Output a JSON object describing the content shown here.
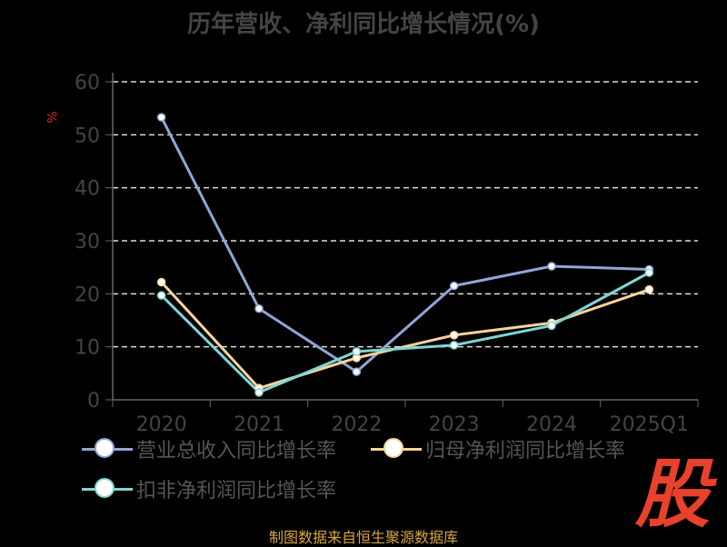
{
  "title": "历年营收、净利同比增长情况(%)",
  "source_note": "制图数据来自恒生聚源数据库",
  "brand_char": "股",
  "chart_data": {
    "type": "line",
    "title": "历年营收、净利同比增长情况(%)",
    "xlabel": "",
    "ylabel": "%",
    "categories": [
      "2020",
      "2021",
      "2022",
      "2023",
      "2024",
      "2025Q1"
    ],
    "ylim": [
      0,
      60
    ],
    "yticks": [
      0,
      10,
      20,
      30,
      40,
      50,
      60
    ],
    "grid": true,
    "legend_position": "bottom",
    "series": [
      {
        "name": "营业总收入同比增长率",
        "color": "#8fa6d6",
        "values": [
          53.3,
          17.2,
          5.3,
          21.5,
          25.2,
          24.6
        ]
      },
      {
        "name": "归母净利润同比增长率",
        "color": "#f9d49a",
        "values": [
          22.2,
          2.2,
          7.9,
          12.2,
          14.5,
          20.8
        ]
      },
      {
        "name": "扣非净利润同比增长率",
        "color": "#7fd6d6",
        "values": [
          19.7,
          1.4,
          9.1,
          10.3,
          14.0,
          24.0
        ]
      }
    ]
  }
}
